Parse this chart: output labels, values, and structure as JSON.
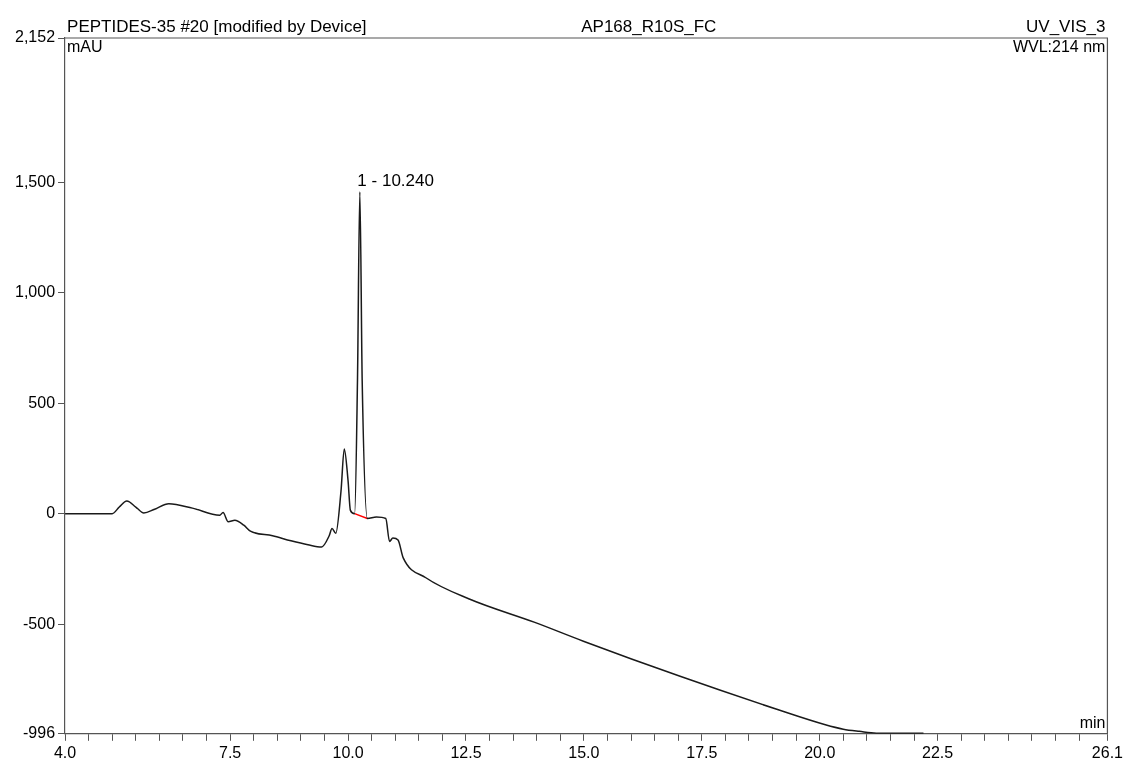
{
  "chart_data": {
    "type": "line",
    "title": "PEPTIDES-35 #20 [modified by Device]",
    "subtitle": "AP168_R10S_FC",
    "xlabel": "min",
    "ylabel": "mAU",
    "annotations": [
      "UV_VIS_3",
      "WVL:214 nm",
      {
        "text": "1 - 10.240",
        "x": 10.24,
        "y": 1455
      }
    ],
    "series": [
      {
        "color": "#1a1a1a",
        "x": [
          4.0,
          5.0,
          5.15,
          5.31,
          5.5,
          5.67,
          5.9,
          6.2,
          6.7,
          7.28,
          7.35,
          7.46,
          7.6,
          7.79,
          7.93,
          8.4,
          8.79,
          9.15,
          9.44,
          9.6,
          9.66,
          9.74,
          9.85,
          9.92,
          10.0,
          10.05,
          10.14,
          10.2,
          10.25,
          10.3,
          10.41,
          10.6,
          10.8,
          10.88,
          10.95,
          11.06,
          11.17,
          11.65,
          12.57,
          13.96,
          14.99,
          17.04,
          19.09,
          20.12,
          20.5,
          20.84,
          21.2,
          22.2
        ],
        "values": [
          0,
          0,
          30,
          57,
          30,
          3,
          20,
          45,
          25,
          -7,
          5,
          -37,
          -30,
          -52,
          -79,
          -100,
          -123,
          -141,
          -151,
          -100,
          -67,
          -89,
          100,
          293,
          150,
          15,
          0,
          600,
          1455,
          600,
          -22,
          -15,
          -22,
          -126,
          -110,
          -119,
          -200,
          -290,
          -386,
          -492,
          -577,
          -736,
          -885,
          -955,
          -975,
          -985,
          -993,
          -993
        ]
      },
      {
        "color": "#ff0000",
        "x": [
          10.14,
          10.41
        ],
        "values": [
          0,
          -22
        ]
      }
    ],
    "xlim": [
      4.0,
      26.1
    ],
    "ylim": [
      -996,
      2152
    ],
    "xticks": [
      {
        "value": 4,
        "label": "4.0"
      },
      {
        "value": 4.5,
        "label": null
      },
      {
        "value": 5,
        "label": null
      },
      {
        "value": 5.5,
        "label": null
      },
      {
        "value": 6,
        "label": null
      },
      {
        "value": 6.5,
        "label": null
      },
      {
        "value": 7,
        "label": null
      },
      {
        "value": 7.5,
        "label": "7.5"
      },
      {
        "value": 8,
        "label": null
      },
      {
        "value": 8.5,
        "label": null
      },
      {
        "value": 9,
        "label": null
      },
      {
        "value": 9.5,
        "label": null
      },
      {
        "value": 10,
        "label": "10.0"
      },
      {
        "value": 10.5,
        "label": null
      },
      {
        "value": 11,
        "label": null
      },
      {
        "value": 11.5,
        "label": null
      },
      {
        "value": 12,
        "label": null
      },
      {
        "value": 12.5,
        "label": "12.5"
      },
      {
        "value": 13,
        "label": null
      },
      {
        "value": 13.5,
        "label": null
      },
      {
        "value": 14,
        "label": null
      },
      {
        "value": 14.5,
        "label": null
      },
      {
        "value": 15,
        "label": "15.0"
      },
      {
        "value": 15.5,
        "label": null
      },
      {
        "value": 16,
        "label": null
      },
      {
        "value": 16.5,
        "label": null
      },
      {
        "value": 17,
        "label": null
      },
      {
        "value": 17.5,
        "label": "17.5"
      },
      {
        "value": 18,
        "label": null
      },
      {
        "value": 18.5,
        "label": null
      },
      {
        "value": 19,
        "label": null
      },
      {
        "value": 19.5,
        "label": null
      },
      {
        "value": 20,
        "label": "20.0"
      },
      {
        "value": 20.5,
        "label": null
      },
      {
        "value": 21,
        "label": null
      },
      {
        "value": 21.5,
        "label": null
      },
      {
        "value": 22,
        "label": null
      },
      {
        "value": 22.5,
        "label": "22.5"
      },
      {
        "value": 23,
        "label": null
      },
      {
        "value": 23.5,
        "label": null
      },
      {
        "value": 24,
        "label": null
      },
      {
        "value": 24.5,
        "label": null
      },
      {
        "value": 25,
        "label": null
      },
      {
        "value": 25.5,
        "label": null
      },
      {
        "value": 26.1,
        "label": "26.1"
      }
    ],
    "yticks": [
      {
        "value": -996,
        "label": "-996"
      },
      -500,
      0,
      500,
      {
        "value": 1000,
        "label": "1,000"
      },
      {
        "value": 1500,
        "label": "1,500"
      },
      {
        "value": 2152,
        "label": "2,152"
      }
    ],
    "grid": false,
    "legend": false,
    "marker": "none",
    "line_style": "solid"
  }
}
